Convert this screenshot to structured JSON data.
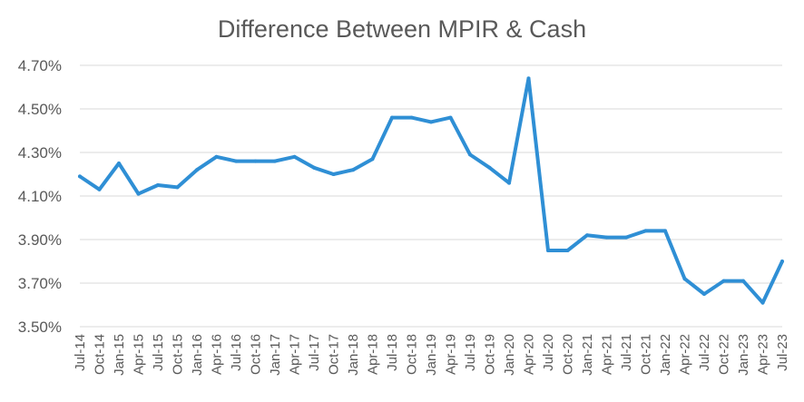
{
  "chart_data": {
    "type": "line",
    "title": "Difference Between MPIR & Cash",
    "xlabel": "",
    "ylabel": "",
    "ylim": [
      3.5,
      4.7
    ],
    "y_ticks": [
      "3.50%",
      "3.70%",
      "3.90%",
      "4.10%",
      "4.30%",
      "4.50%",
      "4.70%"
    ],
    "y_tick_values": [
      3.5,
      3.7,
      3.9,
      4.1,
      4.3,
      4.5,
      4.7
    ],
    "grid": true,
    "legend": "none",
    "colors": {
      "series": "#2f8fd5",
      "grid": "#d9d9d9",
      "text": "#595959"
    },
    "categories": [
      "Jul-14",
      "Oct-14",
      "Jan-15",
      "Apr-15",
      "Jul-15",
      "Oct-15",
      "Jan-16",
      "Apr-16",
      "Jul-16",
      "Oct-16",
      "Jan-17",
      "Apr-17",
      "Jul-17",
      "Oct-17",
      "Jan-18",
      "Apr-18",
      "Jul-18",
      "Oct-18",
      "Jan-19",
      "Apr-19",
      "Jul-19",
      "Oct-19",
      "Jan-20",
      "Apr-20",
      "Jul-20",
      "Oct-20",
      "Jan-21",
      "Apr-21",
      "Jul-21",
      "Oct-21",
      "Jan-22",
      "Apr-22",
      "Jul-22",
      "Oct-22",
      "Jan-23",
      "Apr-23",
      "Jul-23"
    ],
    "series": [
      {
        "values": [
          4.19,
          4.13,
          4.25,
          4.11,
          4.15,
          4.14,
          4.22,
          4.28,
          4.26,
          4.26,
          4.26,
          4.28,
          4.23,
          4.2,
          4.22,
          4.27,
          4.46,
          4.46,
          4.44,
          4.46,
          4.29,
          4.23,
          4.16,
          4.64,
          3.85,
          3.85,
          3.92,
          3.91,
          3.91,
          3.94,
          3.94,
          3.72,
          3.65,
          3.71,
          3.71,
          3.61,
          3.8
        ]
      }
    ]
  }
}
